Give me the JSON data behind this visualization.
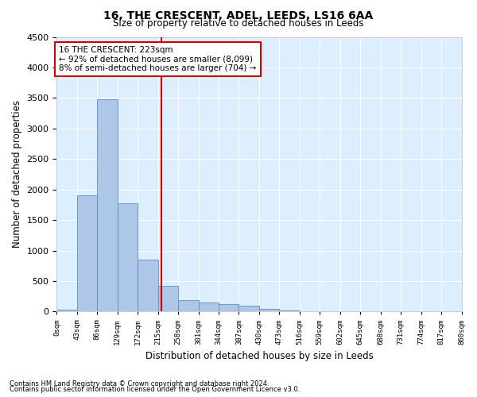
{
  "title": "16, THE CRESCENT, ADEL, LEEDS, LS16 6AA",
  "subtitle": "Size of property relative to detached houses in Leeds",
  "xlabel": "Distribution of detached houses by size in Leeds",
  "ylabel": "Number of detached properties",
  "bar_color": "#aec6e8",
  "bar_edge_color": "#5a8fc0",
  "background_color": "#ddeeff",
  "grid_color": "#ffffff",
  "bin_edges": [
    0,
    43,
    86,
    129,
    172,
    215,
    258,
    301,
    344,
    387,
    430,
    473,
    516,
    559,
    602,
    645,
    688,
    731,
    774,
    817,
    860
  ],
  "bin_labels": [
    "0sqm",
    "43sqm",
    "86sqm",
    "129sqm",
    "172sqm",
    "215sqm",
    "258sqm",
    "301sqm",
    "344sqm",
    "387sqm",
    "430sqm",
    "473sqm",
    "516sqm",
    "559sqm",
    "602sqm",
    "645sqm",
    "688sqm",
    "731sqm",
    "774sqm",
    "817sqm",
    "860sqm"
  ],
  "bar_values": [
    30,
    1900,
    3480,
    1780,
    850,
    420,
    190,
    150,
    120,
    90,
    50,
    20,
    0,
    0,
    0,
    0,
    0,
    0,
    0,
    0
  ],
  "property_size": 223,
  "red_line_color": "#cc0000",
  "annotation_line1": "16 THE CRESCENT: 223sqm",
  "annotation_line2": "← 92% of detached houses are smaller (8,099)",
  "annotation_line3": "8% of semi-detached houses are larger (704) →",
  "annotation_box_color": "#ffffff",
  "annotation_box_edge": "#cc0000",
  "ylim": [
    0,
    4500
  ],
  "yticks": [
    0,
    500,
    1000,
    1500,
    2000,
    2500,
    3000,
    3500,
    4000,
    4500
  ],
  "footnote1": "Contains HM Land Registry data © Crown copyright and database right 2024.",
  "footnote2": "Contains public sector information licensed under the Open Government Licence v3.0."
}
